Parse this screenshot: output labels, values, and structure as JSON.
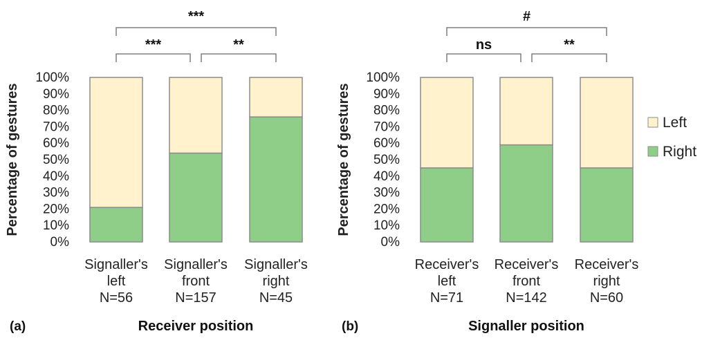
{
  "legend": [
    {
      "label": "Left",
      "color": "#fff2cc"
    },
    {
      "label": "Right",
      "color": "#8fce88"
    }
  ],
  "chart_data": [
    {
      "type": "bar",
      "stacked": true,
      "panel_label": "(a)",
      "xlabel": "Receiver position",
      "ylabel": "Percentage of gestures",
      "ylim": [
        0,
        100
      ],
      "yticks": [
        "0%",
        "10%",
        "20%",
        "30%",
        "40%",
        "50%",
        "60%",
        "70%",
        "80%",
        "90%",
        "100%"
      ],
      "categories": [
        {
          "name": "Signaller's",
          "sub": "left",
          "n": "N=56"
        },
        {
          "name": "Signaller's",
          "sub": "front",
          "n": "N=157"
        },
        {
          "name": "Signaller's",
          "sub": "right",
          "n": "N=45"
        }
      ],
      "series": [
        {
          "name": "Right",
          "values": [
            21,
            54,
            76
          ]
        },
        {
          "name": "Left",
          "values": [
            79,
            46,
            24
          ]
        }
      ],
      "significance": [
        {
          "from": 0,
          "to": 1,
          "label": "***"
        },
        {
          "from": 1,
          "to": 2,
          "label": "**"
        },
        {
          "from": 0,
          "to": 2,
          "label": "***"
        }
      ]
    },
    {
      "type": "bar",
      "stacked": true,
      "panel_label": "(b)",
      "xlabel": "Signaller position",
      "ylabel": "Percentage of gestures",
      "ylim": [
        0,
        100
      ],
      "yticks": [
        "0%",
        "10%",
        "20%",
        "30%",
        "40%",
        "50%",
        "60%",
        "70%",
        "80%",
        "90%",
        "100%"
      ],
      "categories": [
        {
          "name": "Receiver's",
          "sub": "left",
          "n": "N=71"
        },
        {
          "name": "Receiver's",
          "sub": "front",
          "n": "N=142"
        },
        {
          "name": "Receiver's",
          "sub": "right",
          "n": "N=60"
        }
      ],
      "series": [
        {
          "name": "Right",
          "values": [
            45,
            59,
            45
          ]
        },
        {
          "name": "Left",
          "values": [
            55,
            41,
            55
          ]
        }
      ],
      "significance": [
        {
          "from": 0,
          "to": 1,
          "label": "ns"
        },
        {
          "from": 1,
          "to": 2,
          "label": "**"
        },
        {
          "from": 0,
          "to": 2,
          "label": "#"
        }
      ]
    }
  ]
}
